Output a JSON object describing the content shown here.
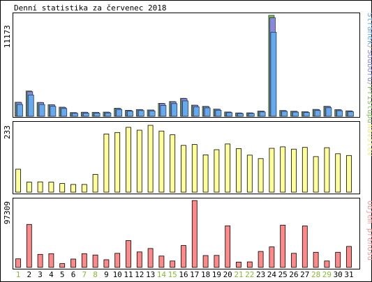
{
  "chart_data": {
    "type": "bar",
    "title": "Denní statistika za červenec 2018",
    "categories": [
      "1",
      "2",
      "3",
      "4",
      "5",
      "6",
      "7",
      "8",
      "9",
      "10",
      "11",
      "12",
      "13",
      "14",
      "15",
      "16",
      "17",
      "18",
      "19",
      "20",
      "21",
      "22",
      "23",
      "24",
      "25",
      "26",
      "27",
      "28",
      "29",
      "30",
      "31"
    ],
    "weekend_days": [
      "1",
      "7",
      "8",
      "14",
      "15",
      "21",
      "22",
      "28",
      "29"
    ],
    "panels": [
      {
        "id": "hits",
        "ymax": 11173,
        "ymax_label": "11173",
        "legend": [
          {
            "text": "Stránek",
            "color": "#66aaee"
          },
          {
            "text": "/",
            "color": "#99aa99"
          },
          {
            "text": "Souborů",
            "color": "#8888dd"
          },
          {
            "text": "/",
            "color": "#99aa99"
          },
          {
            "text": "Přístupů",
            "color": "#88bb66"
          }
        ],
        "series": [
          {
            "name": "Přístupů",
            "color": "#77bb55",
            "values": [
              1560,
              2800,
              1530,
              1290,
              1010,
              410,
              450,
              440,
              460,
              890,
              660,
              750,
              700,
              1430,
              1630,
              1990,
              1230,
              1100,
              790,
              480,
              370,
              380,
              570,
              11173,
              640,
              560,
              510,
              760,
              1110,
              740,
              600
            ]
          },
          {
            "name": "Souborů",
            "color": "#8888dd",
            "values": [
              1530,
              2720,
              1510,
              1270,
              990,
              400,
              440,
              430,
              450,
              870,
              650,
              730,
              690,
              1410,
              1610,
              1950,
              1210,
              1080,
              780,
              470,
              360,
              370,
              560,
              10900,
              630,
              550,
              500,
              740,
              1090,
              720,
              590
            ]
          },
          {
            "name": "Stránek",
            "color": "#66aaee",
            "values": [
              1300,
              2350,
              1300,
              1100,
              860,
              320,
              350,
              350,
              370,
              750,
              560,
              630,
              600,
              1200,
              1400,
              1700,
              1050,
              930,
              670,
              400,
              300,
              310,
              480,
              9300,
              540,
              460,
              420,
              640,
              950,
              620,
              500
            ]
          }
        ]
      },
      {
        "id": "visits",
        "ymax": 233,
        "ymax_label": "233",
        "legend": [
          {
            "text": "Návštěv",
            "color": "#eeee88"
          }
        ],
        "series": [
          {
            "name": "Návštěv",
            "color": "#ffff99",
            "values": [
              80,
              35,
              36,
              35,
              30,
              27,
              27,
              62,
              203,
              208,
              226,
              216,
              233,
              213,
              200,
              163,
              166,
              130,
              148,
              168,
              152,
              129,
              117,
              153,
              158,
              150,
              156,
              124,
              155,
              134,
              128
            ]
          }
        ]
      },
      {
        "id": "volume",
        "ymax": 97309,
        "ymax_label": "97309",
        "legend": [
          {
            "text": "Objem přenosu",
            "color": "#ee9999"
          }
        ],
        "series": [
          {
            "name": "Objem přenosu",
            "color": "#ff8888",
            "values": [
              12500,
              62500,
              19000,
              20000,
              5500,
              12200,
              20000,
              18000,
              11200,
              20500,
              39000,
              22500,
              27500,
              16500,
              9300,
              31800,
              97309,
              17200,
              17400,
              60500,
              7700,
              8000,
              23200,
              29800,
              61500,
              20500,
              60300,
              22000,
              9300,
              22000,
              30500
            ]
          }
        ]
      }
    ]
  }
}
